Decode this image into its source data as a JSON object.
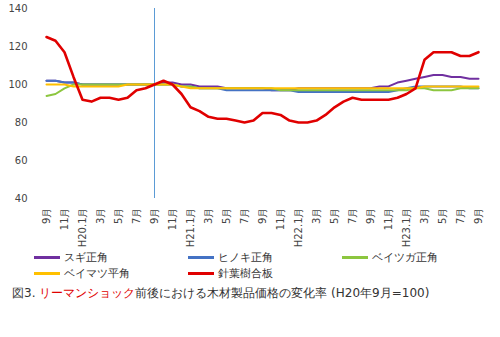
{
  "chart_data": {
    "type": "line",
    "title": "図3. リーマンショック前後における木材製品価格の変化率 (H20年9月=100)",
    "title_highlight": "リーマンショック",
    "categories": [
      "9月",
      null,
      "11月",
      null,
      "H20.1月",
      null,
      "3月",
      null,
      "5月",
      null,
      "7月",
      null,
      "9月",
      null,
      "11月",
      null,
      "H21.1月",
      null,
      "3月",
      null,
      "5月",
      null,
      "7月",
      null,
      "9月",
      null,
      "11月",
      null,
      "H22.1月",
      null,
      "3月",
      null,
      "5月",
      null,
      "7月",
      null,
      "9月",
      null,
      "11月",
      null,
      "H23.1月",
      null,
      "3月",
      null,
      "5月",
      null,
      "7月",
      null,
      "9月"
    ],
    "series": [
      {
        "name": "スギ正角",
        "color": "#7030a0",
        "values": [
          102,
          102,
          101,
          101,
          100,
          100,
          100,
          100,
          100,
          100,
          100,
          100,
          100,
          101,
          101,
          100,
          100,
          99,
          99,
          99,
          98,
          98,
          98,
          98,
          98,
          97,
          97,
          97,
          98,
          98,
          98,
          98,
          98,
          98,
          98,
          98,
          98,
          99,
          99,
          101,
          102,
          103,
          104,
          105,
          105,
          104,
          104,
          103,
          103
        ]
      },
      {
        "name": "ヒノキ正角",
        "color": "#4472c4",
        "values": [
          102,
          102,
          101,
          101,
          100,
          100,
          100,
          100,
          100,
          100,
          100,
          100,
          100,
          100,
          100,
          99,
          99,
          98,
          98,
          98,
          97,
          97,
          97,
          97,
          97,
          97,
          97,
          97,
          96,
          96,
          96,
          96,
          96,
          96,
          96,
          96,
          96,
          96,
          96,
          97,
          98,
          99,
          99,
          99,
          99,
          99,
          99,
          98,
          98
        ]
      },
      {
        "name": "ベイツガ正角",
        "color": "#8cc63f",
        "values": [
          94,
          95,
          98,
          100,
          100,
          100,
          100,
          100,
          100,
          100,
          100,
          100,
          100,
          100,
          100,
          99,
          99,
          98,
          98,
          98,
          98,
          98,
          98,
          98,
          98,
          98,
          97,
          97,
          97,
          97,
          97,
          97,
          97,
          97,
          97,
          97,
          97,
          97,
          97,
          97,
          97,
          98,
          98,
          97,
          97,
          97,
          98,
          98,
          98
        ]
      },
      {
        "name": "ベイマツ平角",
        "color": "#ffc000",
        "values": [
          100,
          100,
          100,
          99,
          99,
          99,
          99,
          99,
          99,
          100,
          100,
          100,
          100,
          100,
          100,
          99,
          98,
          98,
          98,
          98,
          98,
          98,
          98,
          98,
          98,
          98,
          98,
          98,
          98,
          98,
          98,
          98,
          98,
          98,
          98,
          98,
          98,
          98,
          98,
          98,
          98,
          98,
          99,
          99,
          99,
          99,
          99,
          99,
          99
        ]
      },
      {
        "name": "針葉樹合板",
        "color": "#e00000",
        "values": [
          125,
          123,
          117,
          104,
          92,
          91,
          93,
          93,
          92,
          93,
          97,
          98,
          100,
          102,
          100,
          95,
          88,
          86,
          83,
          82,
          82,
          81,
          80,
          81,
          85,
          85,
          84,
          81,
          80,
          80,
          81,
          84,
          88,
          91,
          93,
          92,
          92,
          92,
          92,
          93,
          95,
          98,
          113,
          117,
          117,
          117,
          115,
          115,
          117
        ]
      }
    ],
    "marker_line": {
      "position": 12,
      "color": "#5b9bd5"
    },
    "ylim": [
      40,
      140
    ],
    "yticks": [
      40,
      60,
      80,
      100,
      120,
      140
    ],
    "grid": false,
    "legend": "bottom"
  }
}
